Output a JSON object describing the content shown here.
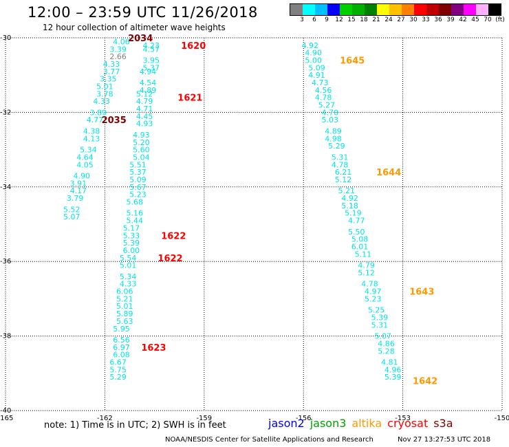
{
  "title": "12:00 – 23:59 UTC 11/26/2018",
  "subtitle": "12 hour collection of altimeter wave heights",
  "colorbar": {
    "swatches": [
      "#808080",
      "#00ffff",
      "#00bfff",
      "#0000ff",
      "#00d000",
      "#00b000",
      "#008000",
      "#ffff00",
      "#ffc000",
      "#ff8000",
      "#ff0000",
      "#c00000",
      "#800000",
      "#800080",
      "#ff00ff",
      "#ffb0ff",
      "#000000"
    ],
    "labels": [
      "3",
      "6",
      "9",
      "12",
      "15",
      "18",
      "21",
      "24",
      "27",
      "30",
      "33",
      "36",
      "39",
      "42",
      "45",
      "70",
      "(ft)"
    ]
  },
  "axes": {
    "lon_ticks": [
      "-165",
      "-162",
      "-159",
      "-156",
      "-153",
      "-150"
    ],
    "lat_ticks": [
      "-30",
      "-32",
      "-34",
      "-36",
      "-38",
      "-40"
    ]
  },
  "chart_data": {
    "type": "scatter",
    "xlim": [
      -165,
      -150
    ],
    "ylim": [
      -40,
      -30
    ],
    "grid": true,
    "colors": {
      "cyan": "#00e5e5",
      "gray": "#808080",
      "red": "#ff0000",
      "darkred": "#800000",
      "orange": "#ff9900"
    },
    "tracks": [
      {
        "points": [
          {
            "lon": -161.5,
            "lat": -30.1,
            "v": "4.06",
            "c": "cyan"
          },
          {
            "lon": -161.6,
            "lat": -30.3,
            "v": "3.39",
            "c": "cyan"
          },
          {
            "lon": -161.6,
            "lat": -30.5,
            "v": "2.66",
            "c": "gray"
          },
          {
            "lon": -161.8,
            "lat": -30.7,
            "v": "4.33",
            "c": "cyan"
          },
          {
            "lon": -161.8,
            "lat": -30.9,
            "v": "3.77",
            "c": "cyan"
          },
          {
            "lon": -161.9,
            "lat": -31.1,
            "v": "3.35",
            "c": "cyan"
          },
          {
            "lon": -162.0,
            "lat": -31.3,
            "v": "5.01",
            "c": "cyan"
          },
          {
            "lon": -162.0,
            "lat": -31.5,
            "v": "3.78",
            "c": "cyan"
          },
          {
            "lon": -162.1,
            "lat": -31.7,
            "v": "4.33",
            "c": "cyan"
          },
          {
            "lon": -162.2,
            "lat": -32.0,
            "v": "3.89",
            "c": "cyan"
          },
          {
            "lon": -162.3,
            "lat": -32.2,
            "v": "4.77",
            "c": "cyan"
          },
          {
            "lon": -162.4,
            "lat": -32.5,
            "v": "4.38",
            "c": "cyan"
          },
          {
            "lon": -162.4,
            "lat": -32.7,
            "v": "4.13",
            "c": "cyan"
          },
          {
            "lon": -162.5,
            "lat": -33.0,
            "v": "5.34",
            "c": "cyan"
          },
          {
            "lon": -162.6,
            "lat": -33.2,
            "v": "4.64",
            "c": "cyan"
          },
          {
            "lon": -162.6,
            "lat": -33.4,
            "v": "4.05",
            "c": "cyan"
          },
          {
            "lon": -162.7,
            "lat": -33.7,
            "v": "4.90",
            "c": "cyan"
          },
          {
            "lon": -162.8,
            "lat": -33.9,
            "v": "3.91",
            "c": "cyan"
          },
          {
            "lon": -162.8,
            "lat": -34.1,
            "v": "4.17",
            "c": "cyan"
          },
          {
            "lon": -162.9,
            "lat": -34.3,
            "v": "3.79",
            "c": "cyan"
          },
          {
            "lon": -163.0,
            "lat": -34.6,
            "v": "5.52",
            "c": "cyan"
          },
          {
            "lon": -163.0,
            "lat": -34.8,
            "v": "5.07",
            "c": "cyan"
          }
        ],
        "labels": [
          {
            "lon": -161.3,
            "lat": -30.0,
            "t": "2034",
            "c": "darkred"
          },
          {
            "lon": -162.1,
            "lat": -32.2,
            "t": "2035",
            "c": "darkred"
          }
        ]
      },
      {
        "points": [
          {
            "lon": -160.6,
            "lat": -30.2,
            "v": "4.23",
            "c": "cyan"
          },
          {
            "lon": -160.6,
            "lat": -30.3,
            "v": "4.57",
            "c": "cyan"
          },
          {
            "lon": -160.6,
            "lat": -30.6,
            "v": "3.95",
            "c": "cyan"
          },
          {
            "lon": -160.6,
            "lat": -30.8,
            "v": "5.37",
            "c": "cyan"
          },
          {
            "lon": -160.7,
            "lat": -30.9,
            "v": "4.94",
            "c": "cyan"
          },
          {
            "lon": -160.7,
            "lat": -31.2,
            "v": "4.54",
            "c": "cyan"
          },
          {
            "lon": -160.7,
            "lat": -31.4,
            "v": "4.89",
            "c": "cyan"
          },
          {
            "lon": -160.8,
            "lat": -31.5,
            "v": "5.12",
            "c": "cyan"
          },
          {
            "lon": -160.8,
            "lat": -31.7,
            "v": "4.79",
            "c": "cyan"
          },
          {
            "lon": -160.8,
            "lat": -31.9,
            "v": "4.71",
            "c": "cyan"
          },
          {
            "lon": -160.8,
            "lat": -32.1,
            "v": "4.45",
            "c": "cyan"
          },
          {
            "lon": -160.8,
            "lat": -32.3,
            "v": "4.93",
            "c": "cyan"
          },
          {
            "lon": -160.9,
            "lat": -32.6,
            "v": "4.93",
            "c": "cyan"
          },
          {
            "lon": -160.9,
            "lat": -32.8,
            "v": "5.20",
            "c": "cyan"
          },
          {
            "lon": -160.9,
            "lat": -33.0,
            "v": "5.60",
            "c": "cyan"
          },
          {
            "lon": -160.9,
            "lat": -33.2,
            "v": "5.04",
            "c": "cyan"
          },
          {
            "lon": -161.0,
            "lat": -33.4,
            "v": "5.51",
            "c": "cyan"
          },
          {
            "lon": -161.0,
            "lat": -33.6,
            "v": "5.37",
            "c": "cyan"
          },
          {
            "lon": -161.0,
            "lat": -33.8,
            "v": "5.09",
            "c": "cyan"
          },
          {
            "lon": -161.0,
            "lat": -34.0,
            "v": "5.67",
            "c": "cyan"
          },
          {
            "lon": -161.0,
            "lat": -34.2,
            "v": "5.23",
            "c": "cyan"
          },
          {
            "lon": -161.1,
            "lat": -34.4,
            "v": "5.68",
            "c": "cyan"
          },
          {
            "lon": -161.1,
            "lat": -34.7,
            "v": "5.16",
            "c": "cyan"
          },
          {
            "lon": -161.1,
            "lat": -34.9,
            "v": "5.44",
            "c": "cyan"
          },
          {
            "lon": -161.2,
            "lat": -35.1,
            "v": "5.17",
            "c": "cyan"
          },
          {
            "lon": -161.2,
            "lat": -35.3,
            "v": "5.33",
            "c": "cyan"
          },
          {
            "lon": -161.2,
            "lat": -35.5,
            "v": "5.39",
            "c": "cyan"
          },
          {
            "lon": -161.2,
            "lat": -35.7,
            "v": "6.00",
            "c": "cyan"
          },
          {
            "lon": -161.3,
            "lat": -35.9,
            "v": "5.54",
            "c": "cyan"
          },
          {
            "lon": -161.3,
            "lat": -36.1,
            "v": "5.01",
            "c": "cyan"
          },
          {
            "lon": -161.3,
            "lat": -36.4,
            "v": "5.34",
            "c": "cyan"
          },
          {
            "lon": -161.3,
            "lat": -36.6,
            "v": "4.33",
            "c": "cyan"
          },
          {
            "lon": -161.4,
            "lat": -36.8,
            "v": "6.06",
            "c": "cyan"
          },
          {
            "lon": -161.4,
            "lat": -37.0,
            "v": "5.21",
            "c": "cyan"
          },
          {
            "lon": -161.4,
            "lat": -37.2,
            "v": "5.01",
            "c": "cyan"
          },
          {
            "lon": -161.4,
            "lat": -37.4,
            "v": "5.89",
            "c": "cyan"
          },
          {
            "lon": -161.4,
            "lat": -37.6,
            "v": "5.63",
            "c": "cyan"
          },
          {
            "lon": -161.5,
            "lat": -37.8,
            "v": "5.95",
            "c": "cyan"
          },
          {
            "lon": -161.5,
            "lat": -38.1,
            "v": "6.56",
            "c": "cyan"
          },
          {
            "lon": -161.5,
            "lat": -38.3,
            "v": "6.97",
            "c": "cyan"
          },
          {
            "lon": -161.5,
            "lat": -38.5,
            "v": "6.08",
            "c": "cyan"
          },
          {
            "lon": -161.6,
            "lat": -38.7,
            "v": "6.67",
            "c": "cyan"
          },
          {
            "lon": -161.6,
            "lat": -38.9,
            "v": "5.75",
            "c": "cyan"
          },
          {
            "lon": -161.6,
            "lat": -39.1,
            "v": "5.29",
            "c": "cyan"
          }
        ],
        "labels": [
          {
            "lon": -159.7,
            "lat": -30.2,
            "t": "1620",
            "c": "red"
          },
          {
            "lon": -159.8,
            "lat": -31.6,
            "t": "1621",
            "c": "red"
          },
          {
            "lon": -160.3,
            "lat": -35.3,
            "t": "1622",
            "c": "red"
          },
          {
            "lon": -160.4,
            "lat": -35.9,
            "t": "1622",
            "c": "red"
          },
          {
            "lon": -160.9,
            "lat": -38.3,
            "t": "1623",
            "c": "red"
          }
        ]
      },
      {
        "points": [
          {
            "lon": -155.8,
            "lat": -30.2,
            "v": "4.92",
            "c": "cyan"
          },
          {
            "lon": -155.7,
            "lat": -30.4,
            "v": "4.90",
            "c": "cyan"
          },
          {
            "lon": -155.7,
            "lat": -30.6,
            "v": "5.00",
            "c": "cyan"
          },
          {
            "lon": -155.6,
            "lat": -30.8,
            "v": "5.09",
            "c": "cyan"
          },
          {
            "lon": -155.6,
            "lat": -31.0,
            "v": "4.91",
            "c": "cyan"
          },
          {
            "lon": -155.5,
            "lat": -31.2,
            "v": "4.73",
            "c": "cyan"
          },
          {
            "lon": -155.4,
            "lat": -31.4,
            "v": "4.56",
            "c": "cyan"
          },
          {
            "lon": -155.4,
            "lat": -31.6,
            "v": "4.78",
            "c": "cyan"
          },
          {
            "lon": -155.3,
            "lat": -31.8,
            "v": "5.27",
            "c": "cyan"
          },
          {
            "lon": -155.2,
            "lat": -32.0,
            "v": "4.70",
            "c": "cyan"
          },
          {
            "lon": -155.2,
            "lat": -32.2,
            "v": "5.03",
            "c": "cyan"
          },
          {
            "lon": -155.1,
            "lat": -32.5,
            "v": "4.89",
            "c": "cyan"
          },
          {
            "lon": -155.1,
            "lat": -32.7,
            "v": "4.98",
            "c": "cyan"
          },
          {
            "lon": -155.0,
            "lat": -32.9,
            "v": "5.29",
            "c": "cyan"
          },
          {
            "lon": -154.9,
            "lat": -33.2,
            "v": "5.31",
            "c": "cyan"
          },
          {
            "lon": -154.9,
            "lat": -33.4,
            "v": "4.78",
            "c": "cyan"
          },
          {
            "lon": -154.8,
            "lat": -33.6,
            "v": "6.21",
            "c": "cyan"
          },
          {
            "lon": -154.8,
            "lat": -33.8,
            "v": "5.12",
            "c": "cyan"
          },
          {
            "lon": -154.7,
            "lat": -34.1,
            "v": "5.21",
            "c": "cyan"
          },
          {
            "lon": -154.6,
            "lat": -34.3,
            "v": "4.92",
            "c": "cyan"
          },
          {
            "lon": -154.6,
            "lat": -34.5,
            "v": "5.18",
            "c": "cyan"
          },
          {
            "lon": -154.5,
            "lat": -34.7,
            "v": "5.19",
            "c": "cyan"
          },
          {
            "lon": -154.4,
            "lat": -34.9,
            "v": "4.77",
            "c": "cyan"
          },
          {
            "lon": -154.4,
            "lat": -35.2,
            "v": "5.50",
            "c": "cyan"
          },
          {
            "lon": -154.3,
            "lat": -35.4,
            "v": "5.08",
            "c": "cyan"
          },
          {
            "lon": -154.3,
            "lat": -35.6,
            "v": "6.01",
            "c": "cyan"
          },
          {
            "lon": -154.2,
            "lat": -35.8,
            "v": "5.11",
            "c": "cyan"
          },
          {
            "lon": -154.1,
            "lat": -36.1,
            "v": "4.79",
            "c": "cyan"
          },
          {
            "lon": -154.1,
            "lat": -36.3,
            "v": "5.12",
            "c": "cyan"
          },
          {
            "lon": -154.0,
            "lat": -36.6,
            "v": "4.78",
            "c": "cyan"
          },
          {
            "lon": -153.9,
            "lat": -36.8,
            "v": "4.97",
            "c": "cyan"
          },
          {
            "lon": -153.9,
            "lat": -37.0,
            "v": "5.23",
            "c": "cyan"
          },
          {
            "lon": -153.8,
            "lat": -37.3,
            "v": "5.25",
            "c": "cyan"
          },
          {
            "lon": -153.7,
            "lat": -37.5,
            "v": "5.39",
            "c": "cyan"
          },
          {
            "lon": -153.7,
            "lat": -37.7,
            "v": "5.31",
            "c": "cyan"
          },
          {
            "lon": -153.6,
            "lat": -38.0,
            "v": "5.07",
            "c": "cyan"
          },
          {
            "lon": -153.5,
            "lat": -38.2,
            "v": "4.86",
            "c": "cyan"
          },
          {
            "lon": -153.5,
            "lat": -38.4,
            "v": "5.28",
            "c": "cyan"
          },
          {
            "lon": -153.4,
            "lat": -38.7,
            "v": "4.81",
            "c": "cyan"
          },
          {
            "lon": -153.3,
            "lat": -38.9,
            "v": "4.96",
            "c": "cyan"
          },
          {
            "lon": -153.3,
            "lat": -39.1,
            "v": "5.39",
            "c": "cyan"
          }
        ],
        "labels": [
          {
            "lon": -154.9,
            "lat": -30.6,
            "t": "1645",
            "c": "orange"
          },
          {
            "lon": -153.8,
            "lat": -33.6,
            "t": "1644",
            "c": "orange"
          },
          {
            "lon": -152.8,
            "lat": -36.8,
            "t": "1643",
            "c": "orange"
          },
          {
            "lon": -152.7,
            "lat": -39.2,
            "t": "1642",
            "c": "orange"
          }
        ]
      }
    ]
  },
  "footer": {
    "note": "note:  1) Time is in UTC;  2) SWH is in feet",
    "legend": [
      {
        "label": "jason2",
        "color": "#0000ff"
      },
      {
        "label": "jason3",
        "color": "#00a000"
      },
      {
        "label": "altika",
        "color": "#ff9900"
      },
      {
        "label": "cryosat",
        "color": "#ff0000"
      },
      {
        "label": "s3a",
        "color": "#800000"
      }
    ],
    "credit": "NOAA/NESDIS Center for Satellite Applications and Research",
    "timestamp": "Nov 27 13:27:53 UTC 2018"
  }
}
